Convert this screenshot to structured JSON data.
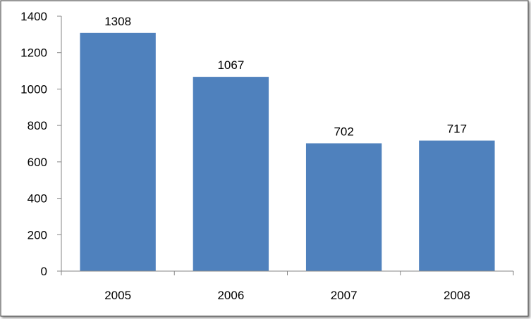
{
  "chart_data": {
    "type": "bar",
    "title": "",
    "xlabel": "",
    "ylabel": "",
    "categories": [
      "2005",
      "2006",
      "2007",
      "2008"
    ],
    "values": [
      1308,
      1067,
      702,
      717
    ],
    "data_labels": [
      "1308",
      "1067",
      "702",
      "717"
    ],
    "ylim": [
      0,
      1400
    ],
    "yticks": [
      0,
      200,
      400,
      600,
      800,
      1000,
      1200,
      1400
    ],
    "ytick_labels": [
      "0",
      "200",
      "400",
      "600",
      "800",
      "1000",
      "1200",
      "1400"
    ],
    "grid": false,
    "legend": "none",
    "bar_color": "#4F81BD",
    "axis_color": "#868686",
    "border_color": "#595959"
  }
}
